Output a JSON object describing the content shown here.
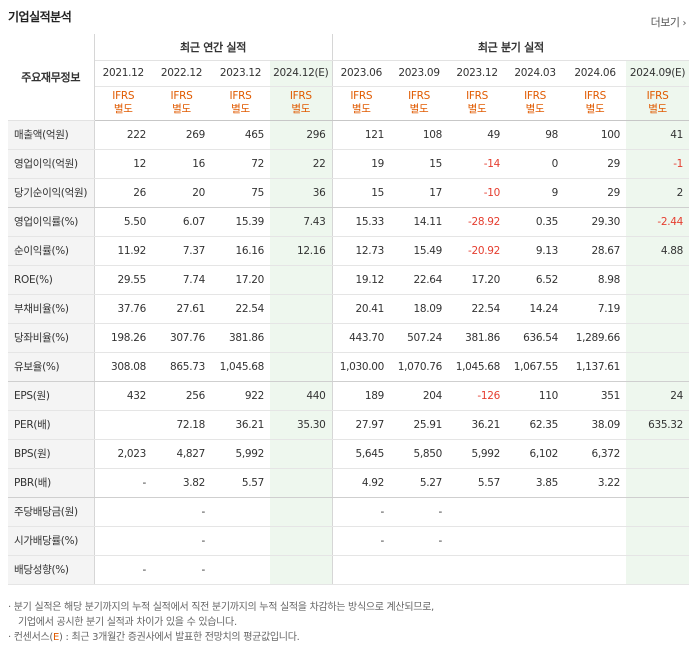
{
  "title": "기업실적분석",
  "more_label": "더보기",
  "more_arrow": "›",
  "row_header": "주요재무정보",
  "annual_group": "최근 연간 실적",
  "quarter_group": "최근 분기 실적",
  "periods": [
    "2021.12",
    "2022.12",
    "2023.12",
    "2024.12(E)",
    "2023.06",
    "2023.09",
    "2023.12",
    "2024.03",
    "2024.06",
    "2024.09(E)"
  ],
  "standard_top": "IFRS",
  "standard_bottom": "별도",
  "rows": [
    {
      "label": "매출액(억원)",
      "values": [
        "222",
        "269",
        "465",
        "296",
        "121",
        "108",
        "49",
        "98",
        "100",
        "41"
      ]
    },
    {
      "label": "영업이익(억원)",
      "values": [
        "12",
        "16",
        "72",
        "22",
        "19",
        "15",
        "-14",
        "0",
        "29",
        "-1"
      ]
    },
    {
      "label": "당기순이익(억원)",
      "values": [
        "26",
        "20",
        "75",
        "36",
        "15",
        "17",
        "-10",
        "9",
        "29",
        "2"
      ]
    },
    {
      "label": "영업이익률(%)",
      "values": [
        "5.50",
        "6.07",
        "15.39",
        "7.43",
        "15.33",
        "14.11",
        "-28.92",
        "0.35",
        "29.30",
        "-2.44"
      ]
    },
    {
      "label": "순이익률(%)",
      "values": [
        "11.92",
        "7.37",
        "16.16",
        "12.16",
        "12.73",
        "15.49",
        "-20.92",
        "9.13",
        "28.67",
        "4.88"
      ]
    },
    {
      "label": "ROE(%)",
      "values": [
        "29.55",
        "7.74",
        "17.20",
        "",
        "19.12",
        "22.64",
        "17.20",
        "6.52",
        "8.98",
        ""
      ]
    },
    {
      "label": "부채비율(%)",
      "values": [
        "37.76",
        "27.61",
        "22.54",
        "",
        "20.41",
        "18.09",
        "22.54",
        "14.24",
        "7.19",
        ""
      ]
    },
    {
      "label": "당좌비율(%)",
      "values": [
        "198.26",
        "307.76",
        "381.86",
        "",
        "443.70",
        "507.24",
        "381.86",
        "636.54",
        "1,289.66",
        ""
      ]
    },
    {
      "label": "유보율(%)",
      "values": [
        "308.08",
        "865.73",
        "1,045.68",
        "",
        "1,030.00",
        "1,070.76",
        "1,045.68",
        "1,067.55",
        "1,137.61",
        ""
      ]
    },
    {
      "label": "EPS(원)",
      "values": [
        "432",
        "256",
        "922",
        "440",
        "189",
        "204",
        "-126",
        "110",
        "351",
        "24"
      ]
    },
    {
      "label": "PER(배)",
      "values": [
        "",
        "72.18",
        "36.21",
        "35.30",
        "27.97",
        "25.91",
        "36.21",
        "62.35",
        "38.09",
        "635.32"
      ]
    },
    {
      "label": "BPS(원)",
      "values": [
        "2,023",
        "4,827",
        "5,992",
        "",
        "5,645",
        "5,850",
        "5,992",
        "6,102",
        "6,372",
        ""
      ]
    },
    {
      "label": "PBR(배)",
      "values": [
        "-",
        "3.82",
        "5.57",
        "",
        "4.92",
        "5.27",
        "5.57",
        "3.85",
        "3.22",
        ""
      ]
    },
    {
      "label": "주당배당금(원)",
      "values": [
        "",
        "-",
        "",
        "",
        "-",
        "-",
        "",
        "",
        "",
        ""
      ]
    },
    {
      "label": "시가배당률(%)",
      "values": [
        "",
        "-",
        "",
        "",
        "-",
        "-",
        "",
        "",
        "",
        ""
      ]
    },
    {
      "label": "배당성향(%)",
      "values": [
        "-",
        "-",
        "",
        "",
        "",
        "",
        "",
        "",
        "",
        ""
      ]
    }
  ],
  "notes": {
    "line1": "분기 실적은 해당 분기까지의 누적 실적에서 직전 분기까지의 누적 실적을 차감하는 방식으로 계산되므로,",
    "line2": "기업에서 공시한 분기 실적과 차이가 있을 수 있습니다.",
    "line3_prefix": "컨센서스(",
    "line3_e": "E",
    "line3_suffix": ") : 최근 3개월간 증권사에서 발표한 전망치의 평균값입니다.",
    "bullet": "·"
  }
}
